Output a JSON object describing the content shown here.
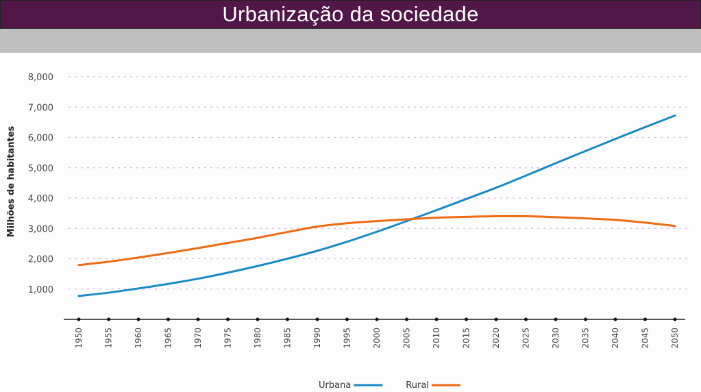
{
  "header": {
    "title": "Urbanização da sociedade"
  },
  "colors": {
    "title_bar": "#501748",
    "band": "#bfbfbf",
    "urbana": "#1a8ac4",
    "rural": "#ef6a10",
    "grid": "#d4b8e0"
  },
  "chart_data": {
    "type": "line",
    "title": "",
    "xlabel": "",
    "ylabel": "Milhões de habitantes",
    "ylim": [
      0,
      8000
    ],
    "xlim": [
      1950,
      2050
    ],
    "grid": true,
    "legend_position": "bottom-center",
    "y_ticks": [
      {
        "value": 1000,
        "label": "1,000"
      },
      {
        "value": 2000,
        "label": "2,000"
      },
      {
        "value": 3000,
        "label": "3,000"
      },
      {
        "value": 4000,
        "label": "4,000"
      },
      {
        "value": 5000,
        "label": "5,000"
      },
      {
        "value": 6000,
        "label": "6,000"
      },
      {
        "value": 7000,
        "label": "7,000"
      },
      {
        "value": 8000,
        "label": "8,000"
      }
    ],
    "x_ticks": [
      "1950",
      "1955",
      "1960",
      "1965",
      "1970",
      "1975",
      "1980",
      "1985",
      "1990",
      "1995",
      "2000",
      "2005",
      "2010",
      "2015",
      "2020",
      "2025",
      "2030",
      "2035",
      "2040",
      "2045",
      "2050"
    ],
    "x": [
      1950,
      1955,
      1960,
      1965,
      1970,
      1975,
      1980,
      1985,
      1990,
      1995,
      2000,
      2005,
      2010,
      2015,
      2020,
      2025,
      2030,
      2035,
      2040,
      2045,
      2050
    ],
    "series": [
      {
        "name": "Urbana",
        "color": "#1a8ac4",
        "values": [
          770,
          880,
          1020,
          1170,
          1340,
          1540,
          1760,
          2000,
          2260,
          2560,
          2890,
          3240,
          3600,
          3970,
          4340,
          4740,
          5150,
          5550,
          5950,
          6340,
          6720
        ]
      },
      {
        "name": "Rural",
        "color": "#ef6a10",
        "values": [
          1790,
          1900,
          2040,
          2190,
          2350,
          2520,
          2690,
          2880,
          3060,
          3170,
          3240,
          3300,
          3350,
          3380,
          3400,
          3400,
          3370,
          3330,
          3280,
          3190,
          3080
        ]
      }
    ]
  }
}
